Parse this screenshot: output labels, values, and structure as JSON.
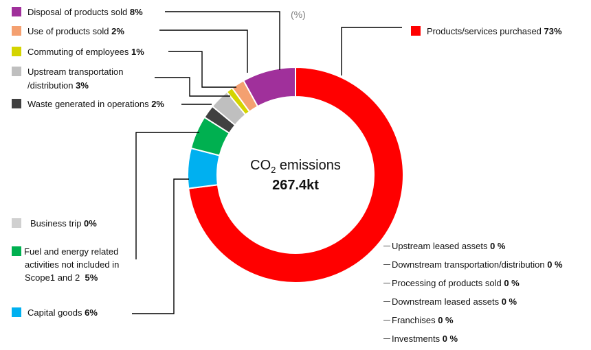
{
  "chart_data": {
    "type": "pie",
    "style": "donut",
    "unit": "(%)",
    "center": {
      "title_main": "CO",
      "title_sub": "2",
      "title_rest": " emissions",
      "value": "267.4kt"
    },
    "slices": [
      {
        "name": "Products/services purchased",
        "value": 73,
        "label_value": "73%",
        "color": "#ff0000"
      },
      {
        "name": "Business trip",
        "value": 0,
        "label_value": "0%",
        "color": "#d0d0d0"
      },
      {
        "name": "Capital goods",
        "value": 6,
        "label_value": "6%",
        "color": "#00b0f0"
      },
      {
        "name": "Fuel and energy related activities not included in Scope1 and 2",
        "value": 5,
        "label_value": "5%",
        "color": "#00b050"
      },
      {
        "name": "Waste generated in operations",
        "value": 2,
        "label_value": "2%",
        "color": "#404040"
      },
      {
        "name": "Upstream transportation /distribution",
        "value": 3,
        "label_value": "3%",
        "color": "#bfbfbf"
      },
      {
        "name": "Commuting of employees",
        "value": 1,
        "label_value": "1%",
        "color": "#d4d400"
      },
      {
        "name": "Use of products sold",
        "value": 2,
        "label_value": "2%",
        "color": "#f4a070"
      },
      {
        "name": "Disposal of products sold",
        "value": 8,
        "label_value": "8%",
        "color": "#a0309b"
      }
    ],
    "legend_labels": {
      "disposal": "Disposal of products sold",
      "use": "Use of products sold",
      "commuting": "Commuting of employees",
      "upstream_l1": "Upstream transportation",
      "upstream_l2": "/distribution",
      "waste": "Waste generated in operations",
      "purchased": "Products/services purchased",
      "business": "Business trip",
      "fuel_l1": "Fuel and energy related",
      "fuel_l2": "activities not included in",
      "fuel_l3": "Scope1 and 2",
      "capital": "Capital goods"
    },
    "zero_categories": [
      {
        "name": "Upstream leased assets",
        "value": "0 %"
      },
      {
        "name": "Downstream transportation/distribution",
        "value": "0 %"
      },
      {
        "name": "Processing of products sold",
        "value": "0 %"
      },
      {
        "name": "Downstream leased assets ",
        "value": "0 %"
      },
      {
        "name": "Franchises",
        "value": "0 %"
      },
      {
        "name": "Investments",
        "value": "0 %"
      }
    ]
  }
}
